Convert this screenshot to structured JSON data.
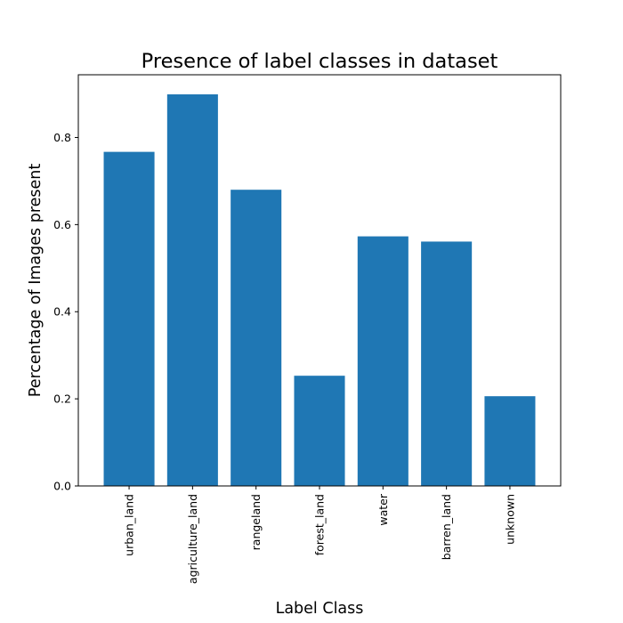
{
  "chart_data": {
    "type": "bar",
    "title": "Presence of label classes in dataset",
    "xlabel": "Label Class",
    "ylabel": "Percentage of Images present",
    "categories": [
      "urban_land",
      "agriculture_land",
      "rangeland",
      "forest_land",
      "water",
      "barren_land",
      "unknown"
    ],
    "values": [
      0.767,
      0.899,
      0.68,
      0.253,
      0.573,
      0.561,
      0.206
    ],
    "ylim": [
      0,
      0.944
    ],
    "yticks": [
      "0.0",
      "0.2",
      "0.4",
      "0.6",
      "0.8"
    ],
    "grid": false,
    "bar_color": "#1f77b4"
  }
}
